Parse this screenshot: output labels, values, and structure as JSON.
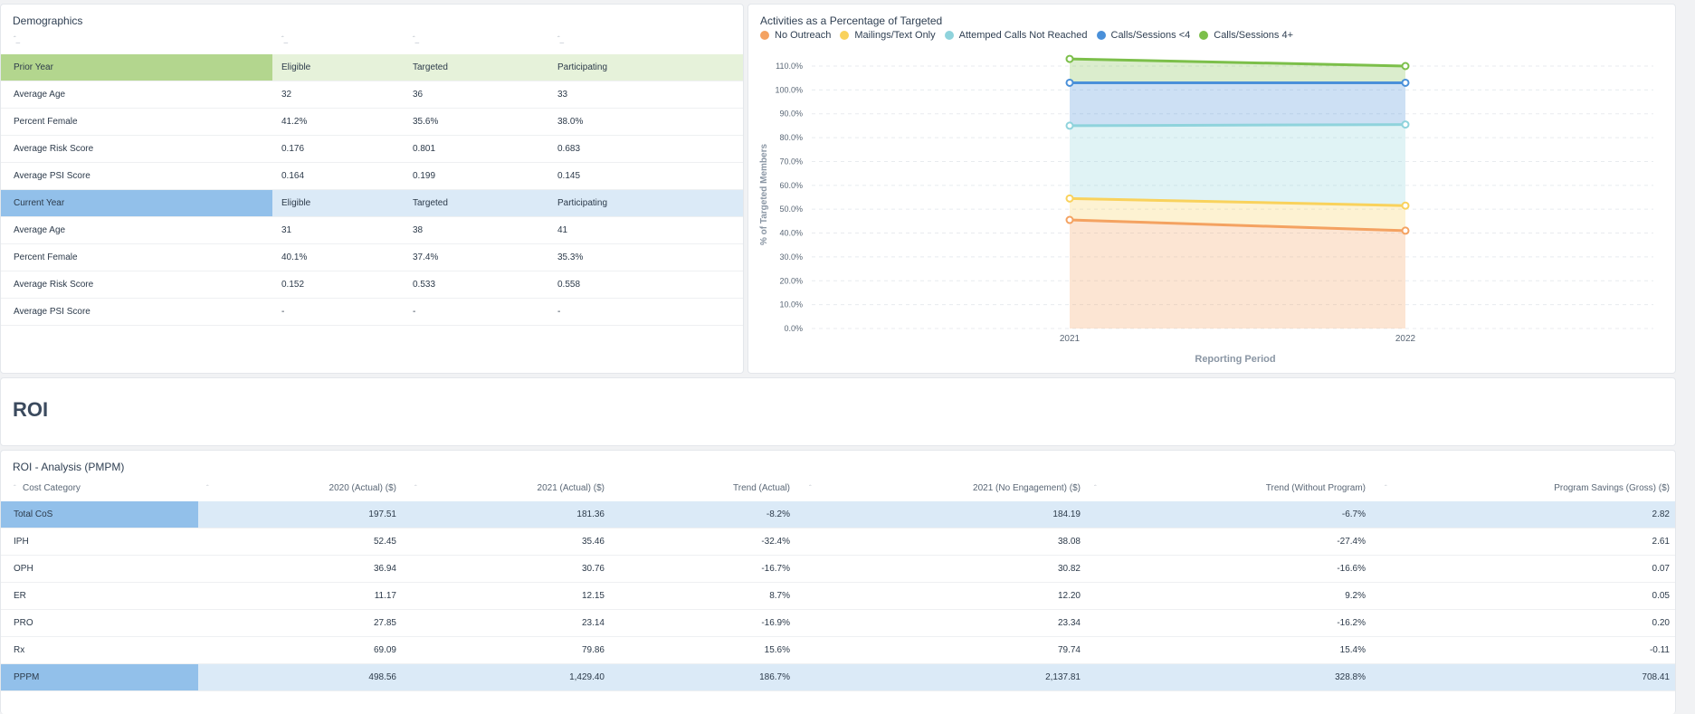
{
  "demographics": {
    "title": "Demographics",
    "columns": [
      "Eligible",
      "Targeted",
      "Participating"
    ],
    "prior_year": {
      "label": "Prior Year",
      "rows": [
        {
          "label": "Average Age",
          "values": [
            "32",
            "36",
            "33"
          ]
        },
        {
          "label": "Percent Female",
          "values": [
            "41.2%",
            "35.6%",
            "38.0%"
          ]
        },
        {
          "label": "Average Risk Score",
          "values": [
            "0.176",
            "0.801",
            "0.683"
          ]
        },
        {
          "label": "Average PSI Score",
          "values": [
            "0.164",
            "0.199",
            "0.145"
          ]
        }
      ]
    },
    "current_year": {
      "label": "Current Year",
      "rows": [
        {
          "label": "Average Age",
          "values": [
            "31",
            "38",
            "41"
          ]
        },
        {
          "label": "Percent Female",
          "values": [
            "40.1%",
            "37.4%",
            "35.3%"
          ]
        },
        {
          "label": "Average Risk Score",
          "values": [
            "0.152",
            "0.533",
            "0.558"
          ]
        },
        {
          "label": "Average PSI Score",
          "values": [
            "-",
            "-",
            "-"
          ]
        }
      ]
    }
  },
  "activities": {
    "title": "Activities as a Percentage of Targeted"
  },
  "chart_data": {
    "type": "area",
    "x": [
      "2021",
      "2022"
    ],
    "xlabel": "Reporting Period",
    "ylabel": "% of Targeted Members",
    "ylim": [
      0,
      110
    ],
    "yticks": [
      "0.0%",
      "10.0%",
      "20.0%",
      "30.0%",
      "40.0%",
      "50.0%",
      "60.0%",
      "70.0%",
      "80.0%",
      "90.0%",
      "100.0%",
      "110.0%"
    ],
    "stacked_cumulative": true,
    "grid": true,
    "legend_position": "top-left",
    "series": [
      {
        "name": "No Outreach",
        "color": "#f4a261",
        "values": [
          45.5,
          41.0
        ]
      },
      {
        "name": "Mailings/Text Only",
        "color": "#f9d25c",
        "values": [
          54.5,
          51.5
        ]
      },
      {
        "name": "Attemped Calls Not Reached",
        "color": "#8fd3dc",
        "values": [
          85.0,
          85.5
        ]
      },
      {
        "name": "Calls/Sessions <4",
        "color": "#4a90d9",
        "values": [
          103.0,
          103.0
        ]
      },
      {
        "name": "Calls/Sessions 4+",
        "color": "#7cbf4a",
        "values": [
          113.0,
          110.0
        ]
      }
    ]
  },
  "roi": {
    "heading": "ROI",
    "table_title": "ROI - Analysis (PMPM)",
    "columns": [
      "Cost Category",
      "2020 (Actual) ($)",
      "2021 (Actual) ($)",
      "Trend (Actual)",
      "2021 (No Engagement) ($)",
      "Trend (Without Program)",
      "Program Savings (Gross) ($)"
    ],
    "rows": [
      {
        "cat": "Total CoS",
        "highlight": true,
        "vals": [
          "197.51",
          "181.36",
          "-8.2%",
          "184.19",
          "-6.7%",
          "2.82"
        ]
      },
      {
        "cat": "IPH",
        "highlight": false,
        "vals": [
          "52.45",
          "35.46",
          "-32.4%",
          "38.08",
          "-27.4%",
          "2.61"
        ]
      },
      {
        "cat": "OPH",
        "highlight": false,
        "vals": [
          "36.94",
          "30.76",
          "-16.7%",
          "30.82",
          "-16.6%",
          "0.07"
        ]
      },
      {
        "cat": "ER",
        "highlight": false,
        "vals": [
          "11.17",
          "12.15",
          "8.7%",
          "12.20",
          "9.2%",
          "0.05"
        ]
      },
      {
        "cat": "PRO",
        "highlight": false,
        "vals": [
          "27.85",
          "23.14",
          "-16.9%",
          "23.34",
          "-16.2%",
          "0.20"
        ]
      },
      {
        "cat": "Rx",
        "highlight": false,
        "vals": [
          "69.09",
          "79.86",
          "15.6%",
          "79.74",
          "15.4%",
          "-0.11"
        ]
      },
      {
        "cat": "PPPM",
        "highlight": true,
        "vals": [
          "498.56",
          "1,429.40",
          "186.7%",
          "2,137.81",
          "328.8%",
          "708.41"
        ]
      }
    ]
  }
}
